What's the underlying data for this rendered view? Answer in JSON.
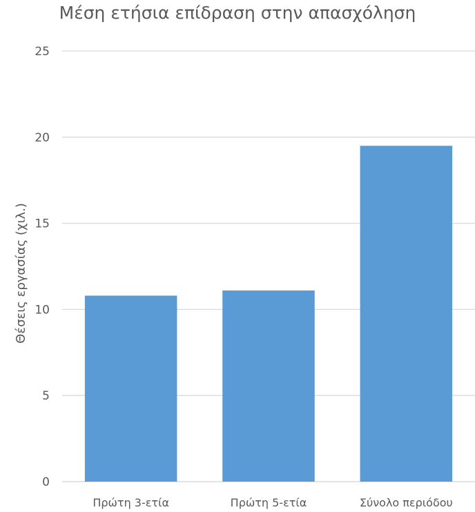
{
  "chart_data": {
    "type": "bar",
    "title": "Μέση ετήσια επίδραση στην απασχόληση",
    "xlabel": "",
    "ylabel": "Θέσεις εργασίας (χιλ.)",
    "categories": [
      "Πρώτη 3-ετία",
      "Πρώτη 5-ετία",
      "Σύνολο περιόδου"
    ],
    "values": [
      10.8,
      11.1,
      19.5
    ],
    "ylim": [
      0,
      25
    ],
    "yticks": [
      "0",
      "5",
      "10",
      "15",
      "20",
      "25"
    ],
    "grid": true,
    "bar_color": "#5b9bd5"
  }
}
